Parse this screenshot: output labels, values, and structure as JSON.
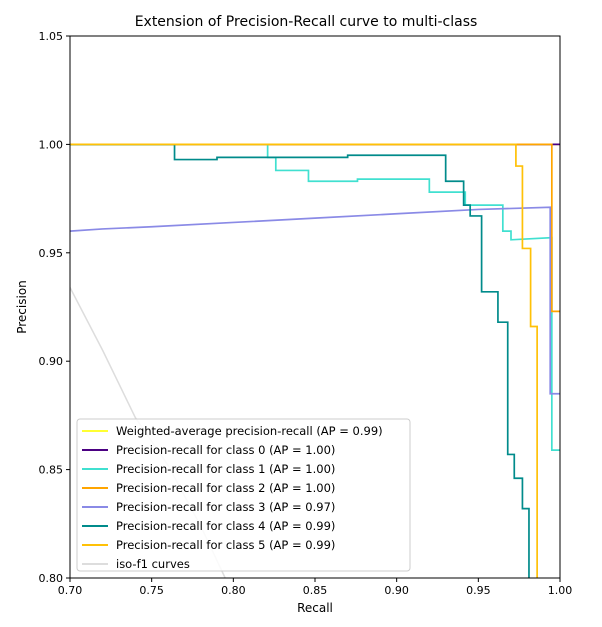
{
  "chart_data": {
    "type": "line",
    "title": "Extension of Precision-Recall curve to multi-class",
    "xlabel": "Recall",
    "ylabel": "Precision",
    "xlim": [
      0.7,
      1.0
    ],
    "ylim": [
      0.8,
      1.05
    ],
    "xticks": [
      "0.70",
      "0.75",
      "0.80",
      "0.85",
      "0.90",
      "0.95",
      "1.00"
    ],
    "yticks": [
      "0.80",
      "0.85",
      "0.90",
      "0.95",
      "1.00",
      "1.05"
    ],
    "grid": false,
    "legend_position": "lower-left",
    "series": [
      {
        "name": "Weighted-average precision-recall (AP = 0.99)",
        "color": "#ffff33",
        "x": [
          0.7,
          1.0
        ],
        "y": [
          1.0,
          1.0
        ]
      },
      {
        "name": "Precision-recall for class 0 (AP = 1.00)",
        "color": "#4b0082",
        "x": [
          0.7,
          1.0
        ],
        "y": [
          1.0,
          1.0
        ]
      },
      {
        "name": "Precision-recall for class 1 (AP = 1.00)",
        "color": "#40e0d0",
        "x": [
          0.7,
          0.821,
          0.821,
          0.826,
          0.826,
          0.846,
          0.846,
          0.876,
          0.876,
          0.92,
          0.92,
          0.942,
          0.942,
          0.965,
          0.965,
          0.97,
          0.97,
          0.995,
          0.995,
          1.0
        ],
        "y": [
          1.0,
          1.0,
          0.994,
          0.994,
          0.988,
          0.988,
          0.983,
          0.983,
          0.984,
          0.984,
          0.978,
          0.978,
          0.972,
          0.972,
          0.96,
          0.96,
          0.956,
          0.957,
          0.859,
          0.859
        ]
      },
      {
        "name": "Precision-recall for class 2 (AP = 1.00)",
        "color": "#ffa500",
        "x": [
          0.7,
          0.995,
          0.995,
          1.0
        ],
        "y": [
          1.0,
          1.0,
          0.923,
          0.923
        ]
      },
      {
        "name": "Precision-recall for class 3 (AP = 0.97)",
        "color": "#8a8ae6",
        "x": [
          0.7,
          0.72,
          0.75,
          0.8,
          0.85,
          0.9,
          0.95,
          0.994,
          0.994,
          1.0
        ],
        "y": [
          0.96,
          0.961,
          0.962,
          0.964,
          0.966,
          0.968,
          0.97,
          0.971,
          0.885,
          0.885
        ]
      },
      {
        "name": "Precision-recall for class 4 (AP = 0.99)",
        "color": "#008b8b",
        "x": [
          0.7,
          0.764,
          0.764,
          0.79,
          0.79,
          0.87,
          0.87,
          0.93,
          0.93,
          0.941,
          0.941,
          0.945,
          0.945,
          0.952,
          0.952,
          0.962,
          0.962,
          0.968,
          0.968,
          0.972,
          0.972,
          0.977,
          0.977,
          0.981,
          0.981
        ],
        "y": [
          1.0,
          1.0,
          0.993,
          0.993,
          0.994,
          0.994,
          0.995,
          0.995,
          0.983,
          0.983,
          0.972,
          0.972,
          0.967,
          0.967,
          0.932,
          0.932,
          0.918,
          0.918,
          0.857,
          0.857,
          0.846,
          0.846,
          0.832,
          0.832,
          0.8
        ]
      },
      {
        "name": "Precision-recall for class 5 (AP = 0.99)",
        "color": "#ffc107",
        "x": [
          0.7,
          0.973,
          0.973,
          0.977,
          0.977,
          0.982,
          0.982,
          0.986,
          0.986
        ],
        "y": [
          1.0,
          1.0,
          0.99,
          0.99,
          0.952,
          0.952,
          0.916,
          0.916,
          0.8
        ]
      },
      {
        "name": "iso-f1 curves",
        "color": "#dddddd",
        "x": [
          0.7,
          0.72,
          0.74,
          0.76,
          0.78,
          0.795
        ],
        "y": [
          0.934,
          0.905,
          0.874,
          0.852,
          0.824,
          0.8
        ]
      }
    ]
  }
}
